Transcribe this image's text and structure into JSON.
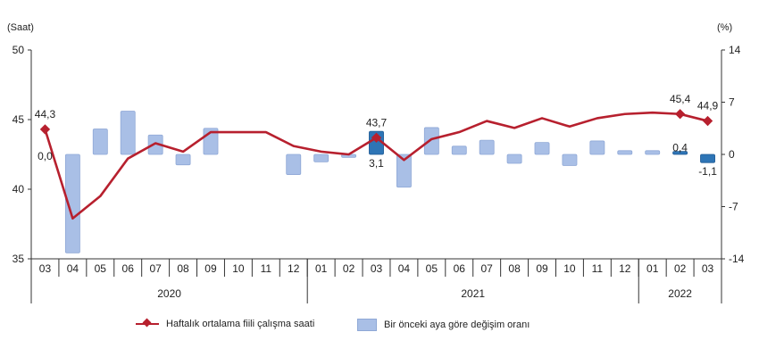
{
  "chart_data": {
    "type": "bar+line",
    "left_axis_unit": "(Saat)",
    "right_axis_unit": "(%)",
    "left_ticks": [
      "50",
      "45",
      "40",
      "35"
    ],
    "right_ticks": [
      "14",
      "7",
      "0",
      "-7",
      "-14"
    ],
    "left_ylim": [
      35,
      50
    ],
    "right_ylim": [
      -14,
      14
    ],
    "categories": [
      "03",
      "04",
      "05",
      "06",
      "07",
      "08",
      "09",
      "10",
      "11",
      "12",
      "01",
      "02",
      "03",
      "04",
      "05",
      "06",
      "07",
      "08",
      "09",
      "10",
      "11",
      "12",
      "01",
      "02",
      "03"
    ],
    "years": [
      {
        "label": "2020",
        "start": 0,
        "end": 9
      },
      {
        "label": "2021",
        "start": 10,
        "end": 21
      },
      {
        "label": "2022",
        "start": 22,
        "end": 24
      }
    ],
    "series": [
      {
        "name": "Haftalık ortalama fiili çalışma saati",
        "type": "line",
        "axis": "left",
        "color": "#b7202e",
        "values": [
          44.3,
          37.9,
          39.5,
          42.2,
          43.3,
          42.7,
          44.1,
          44.1,
          44.1,
          43.1,
          42.7,
          42.5,
          43.7,
          42.1,
          43.6,
          44.1,
          44.9,
          44.4,
          45.1,
          44.5,
          45.1,
          45.4,
          45.5,
          45.4,
          44.9
        ]
      },
      {
        "name": "Bir önceki aya göre değişim oranı",
        "type": "bar",
        "axis": "right",
        "color": "#a9bfe6",
        "highlight_color": "#2e75b6",
        "values": [
          0.0,
          -13.2,
          3.4,
          5.8,
          2.6,
          -1.4,
          3.5,
          0.0,
          0.0,
          -2.7,
          -1.0,
          -0.4,
          3.1,
          -4.4,
          3.6,
          1.1,
          1.9,
          -1.2,
          1.6,
          -1.5,
          1.8,
          0.5,
          0.5,
          0.4,
          -1.1
        ],
        "highlighted": [
          12,
          23,
          24
        ]
      }
    ],
    "data_labels": [
      {
        "index": 0,
        "series": "line",
        "text": "44,3"
      },
      {
        "index": 0,
        "series": "bar",
        "text": "0,0"
      },
      {
        "index": 12,
        "series": "line",
        "text": "43,7"
      },
      {
        "index": 12,
        "series": "bar",
        "text": "3,1"
      },
      {
        "index": 23,
        "series": "line",
        "text": "45,4"
      },
      {
        "index": 23,
        "series": "bar",
        "text": "0,4"
      },
      {
        "index": 24,
        "series": "line",
        "text": "44,9"
      },
      {
        "index": 24,
        "series": "bar",
        "text": "-1,1"
      }
    ]
  },
  "legend": {
    "line_label": "Haftalık ortalama fiili çalışma saati",
    "bar_label": "Bir önceki aya göre değişim oranı"
  }
}
